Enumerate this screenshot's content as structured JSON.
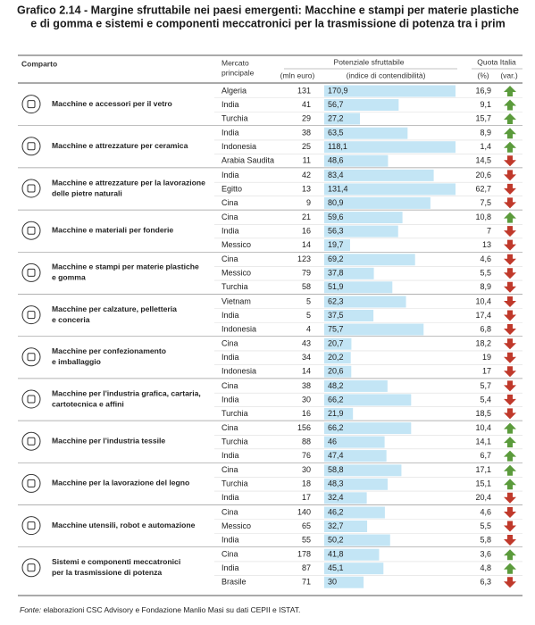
{
  "header": {
    "title": [
      "Grafico 2.14 - Margine sfruttabile nei paesi emergenti: Macchine e stampi per materie plastiche",
      "e di gomma e sistemi e componenti meccatronici per la trasmissione di potenza tra i prim"
    ]
  },
  "table": {
    "columns": {
      "comparto": "Comparto",
      "mercato": [
        "Mercato",
        "principale"
      ],
      "potenziale": "Potenziale sfruttabile",
      "mln": "(mln euro)",
      "indice": "(indice di contendibilità)",
      "quota": "Quota Italia",
      "pct": "(%)",
      "var": "(var.)"
    },
    "groups": [
      {
        "label": [
          "Macchine e accessori per il vetro"
        ],
        "rows": [
          {
            "market": "Algeria",
            "mln": 131,
            "index": {
              "value": 170.9,
              "label": "170,9"
            },
            "quota": "16,9",
            "trend": "up"
          },
          {
            "market": "India",
            "mln": 41,
            "index": {
              "value": 56.7,
              "label": "56,7"
            },
            "quota": "9,1",
            "trend": "up"
          },
          {
            "market": "Turchia",
            "mln": 29,
            "index": {
              "value": 27.2,
              "label": "27,2"
            },
            "quota": "15,7",
            "trend": "up"
          }
        ]
      },
      {
        "label": [
          "Macchine e attrezzature per ceramica"
        ],
        "rows": [
          {
            "market": "India",
            "mln": 38,
            "index": {
              "value": 63.5,
              "label": "63,5"
            },
            "quota": "8,9",
            "trend": "up"
          },
          {
            "market": "Indonesia",
            "mln": 25,
            "index": {
              "value": 118.1,
              "label": "118,1"
            },
            "quota": "1,4",
            "trend": "up"
          },
          {
            "market": "Arabia Saudita",
            "mln": 11,
            "index": {
              "value": 48.6,
              "label": "48,6"
            },
            "quota": "14,5",
            "trend": "down"
          }
        ]
      },
      {
        "label": [
          "Macchine e attrezzature per la lavorazione",
          "delle pietre naturali"
        ],
        "rows": [
          {
            "market": "India",
            "mln": 42,
            "index": {
              "value": 83.4,
              "label": "83,4"
            },
            "quota": "20,6",
            "trend": "down"
          },
          {
            "market": "Egitto",
            "mln": 13,
            "index": {
              "value": 131.4,
              "label": "131,4"
            },
            "quota": "62,7",
            "trend": "down"
          },
          {
            "market": "Cina",
            "mln": 9,
            "index": {
              "value": 80.9,
              "label": "80,9"
            },
            "quota": "7,5",
            "trend": "down"
          }
        ]
      },
      {
        "label": [
          "Macchine e materiali per fonderie"
        ],
        "rows": [
          {
            "market": "Cina",
            "mln": 21,
            "index": {
              "value": 59.6,
              "label": "59,6"
            },
            "quota": "10,8",
            "trend": "up"
          },
          {
            "market": "India",
            "mln": 16,
            "index": {
              "value": 56.3,
              "label": "56,3"
            },
            "quota": "7",
            "trend": "down"
          },
          {
            "market": "Messico",
            "mln": 14,
            "index": {
              "value": 19.7,
              "label": "19,7"
            },
            "quota": "13",
            "trend": "down"
          }
        ]
      },
      {
        "label": [
          "Macchine e stampi per materie plastiche",
          "e gomma"
        ],
        "rows": [
          {
            "market": "Cina",
            "mln": 123,
            "index": {
              "value": 69.2,
              "label": "69,2"
            },
            "quota": "4,6",
            "trend": "down"
          },
          {
            "market": "Messico",
            "mln": 79,
            "index": {
              "value": 37.8,
              "label": "37,8"
            },
            "quota": "5,5",
            "trend": "down"
          },
          {
            "market": "Turchia",
            "mln": 58,
            "index": {
              "value": 51.9,
              "label": "51,9"
            },
            "quota": "8,9",
            "trend": "down"
          }
        ]
      },
      {
        "label": [
          "Macchine per calzature, pelletteria",
          "e conceria"
        ],
        "rows": [
          {
            "market": "Vietnam",
            "mln": 5,
            "index": {
              "value": 62.3,
              "label": "62,3"
            },
            "quota": "10,4",
            "trend": "down"
          },
          {
            "market": "India",
            "mln": 5,
            "index": {
              "value": 37.5,
              "label": "37,5"
            },
            "quota": "17,4",
            "trend": "down"
          },
          {
            "market": "Indonesia",
            "mln": 4,
            "index": {
              "value": 75.7,
              "label": "75,7"
            },
            "quota": "6,8",
            "trend": "down"
          }
        ]
      },
      {
        "label": [
          "Macchine per confezionamento",
          "e imballaggio"
        ],
        "rows": [
          {
            "market": "Cina",
            "mln": 43,
            "index": {
              "value": 20.7,
              "label": "20,7"
            },
            "quota": "18,2",
            "trend": "down"
          },
          {
            "market": "India",
            "mln": 34,
            "index": {
              "value": 20.2,
              "label": "20,2"
            },
            "quota": "19",
            "trend": "down"
          },
          {
            "market": "Indonesia",
            "mln": 14,
            "index": {
              "value": 20.6,
              "label": "20,6"
            },
            "quota": "17",
            "trend": "down"
          }
        ]
      },
      {
        "label": [
          "Macchine per l'industria grafica, cartaria,",
          "cartotecnica e affini"
        ],
        "rows": [
          {
            "market": "Cina",
            "mln": 38,
            "index": {
              "value": 48.2,
              "label": "48,2"
            },
            "quota": "5,7",
            "trend": "down"
          },
          {
            "market": "India",
            "mln": 30,
            "index": {
              "value": 66.2,
              "label": "66,2"
            },
            "quota": "5,4",
            "trend": "down"
          },
          {
            "market": "Turchia",
            "mln": 16,
            "index": {
              "value": 21.9,
              "label": "21,9"
            },
            "quota": "18,5",
            "trend": "down"
          }
        ]
      },
      {
        "label": [
          "Macchine per l'industria tessile"
        ],
        "rows": [
          {
            "market": "Cina",
            "mln": 156,
            "index": {
              "value": 66.2,
              "label": "66,2"
            },
            "quota": "10,4",
            "trend": "up"
          },
          {
            "market": "Turchia",
            "mln": 88,
            "index": 46,
            "quota": "14,1",
            "trend": "up"
          },
          {
            "market": "India",
            "mln": 76,
            "index": {
              "value": 47.4,
              "label": "47,4"
            },
            "quota": "6,7",
            "trend": "up"
          }
        ]
      },
      {
        "label": [
          "Macchine per la lavorazione del legno"
        ],
        "rows": [
          {
            "market": "Cina",
            "mln": 30,
            "index": {
              "value": 58.8,
              "label": "58,8"
            },
            "quota": "17,1",
            "trend": "up"
          },
          {
            "market": "Turchia",
            "mln": 18,
            "index": {
              "value": 48.3,
              "label": "48,3"
            },
            "quota": "15,1",
            "trend": "up"
          },
          {
            "market": "India",
            "mln": 17,
            "index": {
              "value": 32.4,
              "label": "32,4"
            },
            "quota": "20,4",
            "trend": "down"
          }
        ]
      },
      {
        "label": [
          "Macchine utensili, robot e automazione"
        ],
        "rows": [
          {
            "market": "Cina",
            "mln": 140,
            "index": {
              "value": 46.2,
              "label": "46,2"
            },
            "quota": "4,6",
            "trend": "down"
          },
          {
            "market": "Messico",
            "mln": 65,
            "index": {
              "value": 32.7,
              "label": "32,7"
            },
            "quota": "5,5",
            "trend": "down"
          },
          {
            "market": "India",
            "mln": 55,
            "index": {
              "value": 50.2,
              "label": "50,2"
            },
            "quota": "5,8",
            "trend": "down"
          }
        ]
      },
      {
        "label": [
          "Sistemi e componenti meccatronici",
          "per la trasmissione di potenza"
        ],
        "rows": [
          {
            "market": "Cina",
            "mln": 178,
            "index": {
              "value": 41.8,
              "label": "41,8"
            },
            "quota": "3,6",
            "trend": "up"
          },
          {
            "market": "India",
            "mln": 87,
            "index": {
              "value": 45.1,
              "label": "45,1"
            },
            "quota": "4,8",
            "trend": "up"
          },
          {
            "market": "Brasile",
            "mln": 71,
            "index": 30,
            "quota": "6,3",
            "trend": "down"
          }
        ]
      }
    ],
    "bar_color": "#c3e5f5",
    "up_color": "#5b9b3c",
    "down_color": "#c0392b"
  },
  "footer": {
    "source_label": "Fonte:",
    "text": " elaborazioni CSC Advisory e Fondazione Manlio Masi su dati CEPII e ISTAT."
  }
}
